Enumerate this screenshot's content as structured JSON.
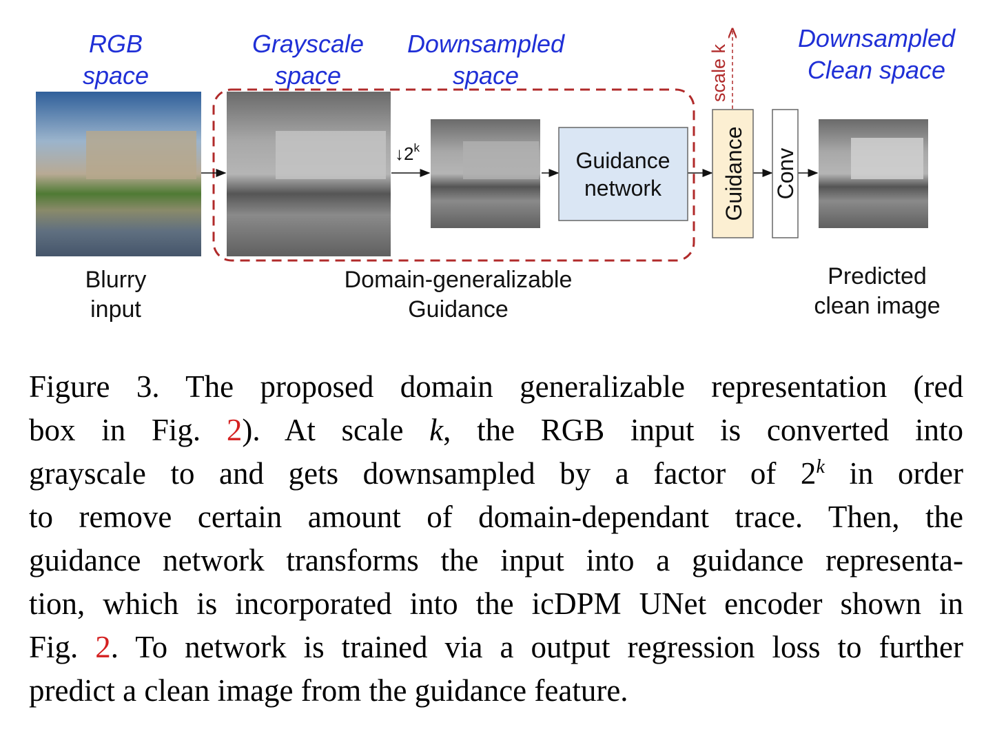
{
  "figure": {
    "labels": {
      "rgb_space": [
        "RGB",
        "space"
      ],
      "grayscale_space": [
        "Grayscale",
        "space"
      ],
      "downsampled_space": [
        "Downsampled",
        "space"
      ],
      "downsampled_clean_space": [
        "Downsampled",
        "Clean space"
      ],
      "blurry_input": [
        "Blurry",
        "input"
      ],
      "domain_generalizable": [
        "Domain-generalizable",
        "Guidance"
      ],
      "predicted_clean": [
        "Predicted",
        "clean image"
      ],
      "downsample_factor": "↓2",
      "downsample_exp": "k",
      "scale_k": "scale k"
    },
    "boxes": {
      "guidance_network": [
        "Guidance",
        "network"
      ],
      "guidance": "Guidance",
      "conv": "Conv"
    },
    "colors": {
      "label_blue": "#1f2fd6",
      "dashed_red": "#b02a2a",
      "guidance_network_fill": "#dae6f4",
      "guidance_fill": "#fcefd2",
      "reference_red": "#d42020"
    }
  },
  "caption": {
    "lines": [
      [
        {
          "t": "Figure 3.  The proposed domain generalizable representation (red"
        }
      ],
      [
        {
          "t": "box in Fig. "
        },
        {
          "t": "2",
          "s": "ref"
        },
        {
          "t": ").   At scale "
        },
        {
          "t": "k",
          "s": "it"
        },
        {
          "t": ", the RGB input is converted into"
        }
      ],
      [
        {
          "t": "grayscale to and gets downsampled by a factor of 2"
        },
        {
          "t": "k",
          "s": "sup"
        },
        {
          "t": " in order"
        }
      ],
      [
        {
          "t": "to remove certain amount of domain-dependant trace.  Then, the"
        }
      ],
      [
        {
          "t": "guidance network transforms the input into a guidance representa-"
        }
      ],
      [
        {
          "t": "tion, which is incorporated into the icDPM UNet encoder shown in"
        }
      ],
      [
        {
          "t": "Fig. "
        },
        {
          "t": "2",
          "s": "ref"
        },
        {
          "t": ". To network is trained via a output regression loss to further"
        }
      ],
      [
        {
          "t": "predict a clean image from the guidance feature."
        }
      ]
    ]
  }
}
